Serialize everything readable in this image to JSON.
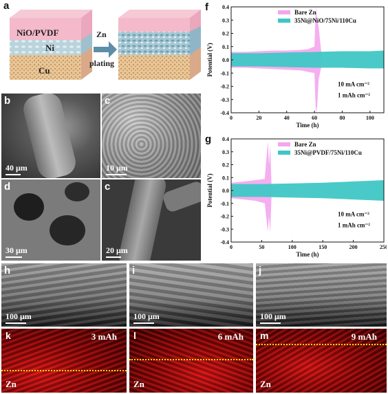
{
  "panel_labels": {
    "a": "a",
    "b": "b",
    "c1": "c",
    "d": "d",
    "c2": "c",
    "f": "f",
    "g": "g",
    "h": "h",
    "i": "i",
    "j": "j",
    "k": "k",
    "l": "l",
    "m": "m"
  },
  "schematic": {
    "layer_top": "NiO/PVDF",
    "layer_mid": "Ni",
    "layer_bot": "Cu",
    "arrow_top": "Zn",
    "arrow_bottom": "plating"
  },
  "sem_scales": {
    "b": "40 μm",
    "c1": "10 μm",
    "d": "30 μm",
    "c2": "20 μm",
    "h": "100 μm",
    "i": "100 μm",
    "j": "100 μm"
  },
  "maps": {
    "k": {
      "capacity": "3 mAh",
      "element": "Zn"
    },
    "l": {
      "capacity": "6 mAh",
      "element": "Zn"
    },
    "m": {
      "capacity": "9 mAh",
      "element": "Zn"
    }
  },
  "colors": {
    "bare_zn": "#f4a6ee",
    "coated": "#3fc7c5",
    "map_red": "#c81010",
    "dash": "#f0e000"
  },
  "chart_data": [
    {
      "id": "f",
      "type": "line",
      "xlabel": "Time (h)",
      "ylabel": "Potential (V)",
      "xlim": [
        0,
        110
      ],
      "ylim": [
        -0.4,
        0.4
      ],
      "xticks": [
        "0",
        "20",
        "40",
        "60",
        "80",
        "100"
      ],
      "yticks": [
        "-0.4",
        "-0.3",
        "-0.2",
        "-0.1",
        "0.0",
        "0.1",
        "0.2",
        "0.3",
        "0.4"
      ],
      "series": [
        {
          "name": "Bare Zn",
          "color": "#f4a6ee",
          "x": [
            0,
            10,
            20,
            30,
            40,
            50,
            55,
            60,
            61,
            62,
            63,
            65
          ],
          "upper": [
            0.06,
            0.06,
            0.065,
            0.07,
            0.07,
            0.075,
            0.08,
            0.1,
            0.4,
            0.3,
            0.25,
            0.05
          ],
          "lower": [
            -0.06,
            -0.06,
            -0.065,
            -0.07,
            -0.075,
            -0.08,
            -0.09,
            -0.1,
            -0.4,
            -0.35,
            -0.15,
            -0.05
          ]
        },
        {
          "name": "35Ni@NiO/75Ni/110Cu",
          "color": "#3fc7c5",
          "x": [
            0,
            20,
            40,
            60,
            80,
            100,
            110
          ],
          "upper": [
            0.05,
            0.05,
            0.055,
            0.06,
            0.065,
            0.065,
            0.07
          ],
          "lower": [
            -0.05,
            -0.05,
            -0.055,
            -0.06,
            -0.06,
            -0.065,
            -0.065
          ]
        }
      ],
      "annotations": [
        "10 mA cm⁻²",
        "1 mAh cm⁻²"
      ],
      "legend": "top-right"
    },
    {
      "id": "g",
      "type": "line",
      "xlabel": "Time (h)",
      "ylabel": "Potential (V)",
      "xlim": [
        0,
        250
      ],
      "ylim": [
        -0.4,
        0.4
      ],
      "xticks": [
        "0",
        "50",
        "100",
        "150",
        "200",
        "250"
      ],
      "yticks": [
        "-0.4",
        "-0.3",
        "-0.2",
        "-0.1",
        "0.0",
        "0.1",
        "0.2",
        "0.3",
        "0.4"
      ],
      "series": [
        {
          "name": "Bare Zn",
          "color": "#f4a6ee",
          "x": [
            0,
            20,
            40,
            55,
            60,
            62,
            64,
            66
          ],
          "upper": [
            0.06,
            0.07,
            0.08,
            0.09,
            0.38,
            0.2,
            0.35,
            0.05
          ],
          "lower": [
            -0.06,
            -0.07,
            -0.08,
            -0.1,
            -0.32,
            -0.2,
            -0.33,
            -0.05
          ]
        },
        {
          "name": "35Ni@PVDF/75Ni/110Cu",
          "color": "#3fc7c5",
          "x": [
            0,
            50,
            100,
            150,
            200,
            250
          ],
          "upper": [
            0.05,
            0.05,
            0.055,
            0.06,
            0.07,
            0.08
          ],
          "lower": [
            -0.05,
            -0.05,
            -0.055,
            -0.06,
            -0.07,
            -0.08
          ]
        }
      ],
      "annotations": [
        "10 mA cm⁻²",
        "1 mAh cm⁻²"
      ],
      "legend": "top-right"
    }
  ]
}
